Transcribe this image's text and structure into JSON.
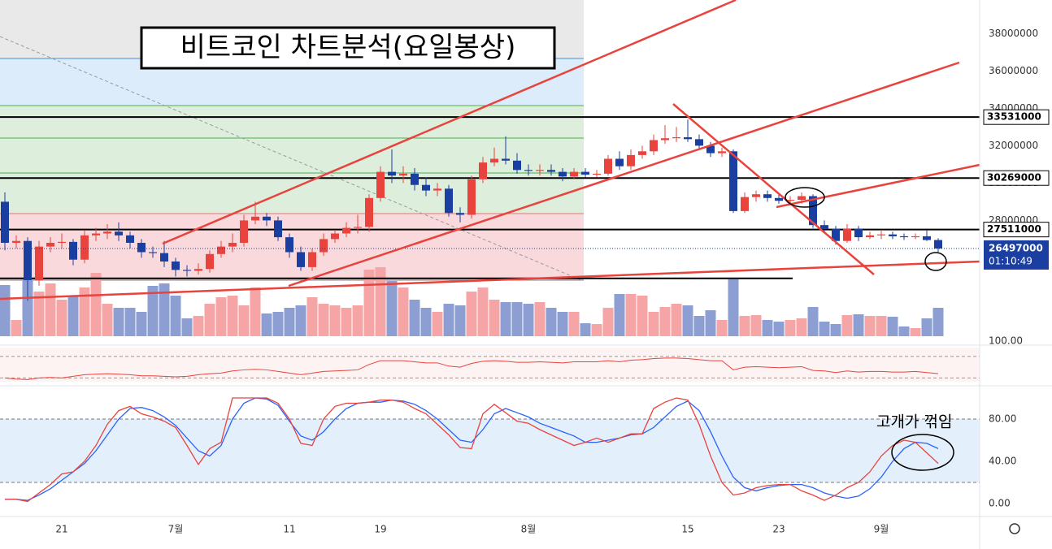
{
  "chart_data": {
    "type": "candlestick",
    "title": "비트코인 차트분석(요일봉상)",
    "annotation": "고개가 꺾임",
    "countdown": "01:10:49",
    "up_color": "#e8433d",
    "down_color": "#1b3fa0",
    "up_volume_color": "#f5a5a5",
    "down_volume_color": "#8d9fd2",
    "ylim": [
      21800000,
      39800000
    ],
    "yticks": [
      28000000,
      30000000,
      32000000,
      34000000,
      36000000,
      38000000
    ],
    "levels": [
      33531000,
      30269000,
      27511000
    ],
    "base_line": 24900000,
    "xticks": [
      {
        "value": 5,
        "label": "21"
      },
      {
        "value": 15,
        "label": "7월"
      },
      {
        "value": 25,
        "label": "11"
      },
      {
        "value": 33,
        "label": "19"
      },
      {
        "value": 46,
        "label": "8월"
      },
      {
        "value": 60,
        "label": "15"
      },
      {
        "value": 68,
        "label": "23"
      },
      {
        "value": 77,
        "label": "9월"
      }
    ],
    "ohlc": [
      [
        29000000,
        29500000,
        26400000,
        26800000
      ],
      [
        26800000,
        27200000,
        26500000,
        26900000
      ],
      [
        26900000,
        27100000,
        23700000,
        24800000
      ],
      [
        24800000,
        26900000,
        24500000,
        26600000
      ],
      [
        26600000,
        27100000,
        26300000,
        26800000
      ],
      [
        26800000,
        27300000,
        26500000,
        26850000
      ],
      [
        26850000,
        27000000,
        25600000,
        25900000
      ],
      [
        25900000,
        27500000,
        25700000,
        27200000
      ],
      [
        27200000,
        27600000,
        26900000,
        27300000
      ],
      [
        27300000,
        27800000,
        27000000,
        27400000
      ],
      [
        27400000,
        27900000,
        26900000,
        27200000
      ],
      [
        27200000,
        27400000,
        26500000,
        26800000
      ],
      [
        26800000,
        27000000,
        26000000,
        26300000
      ],
      [
        26300000,
        26600000,
        26000000,
        26250000
      ],
      [
        26250000,
        26900000,
        25500000,
        25800000
      ],
      [
        25800000,
        26000000,
        25000000,
        25350000
      ],
      [
        25350000,
        25600000,
        25000000,
        25300000
      ],
      [
        25300000,
        25700000,
        25100000,
        25400000
      ],
      [
        25400000,
        26400000,
        25200000,
        26200000
      ],
      [
        26200000,
        26900000,
        26000000,
        26600000
      ],
      [
        26600000,
        27300000,
        26300000,
        26800000
      ],
      [
        26800000,
        28300000,
        26600000,
        28000000
      ],
      [
        28000000,
        29000000,
        27800000,
        28200000
      ],
      [
        28200000,
        28400000,
        27700000,
        28000000
      ],
      [
        28000000,
        28200000,
        26900000,
        27100000
      ],
      [
        27100000,
        27300000,
        26000000,
        26300000
      ],
      [
        26300000,
        26600000,
        25300000,
        25500000
      ],
      [
        25500000,
        26500000,
        25300000,
        26300000
      ],
      [
        26300000,
        27300000,
        26100000,
        27000000
      ],
      [
        27000000,
        27500000,
        26800000,
        27300000
      ],
      [
        27300000,
        27900000,
        27100000,
        27600000
      ],
      [
        27600000,
        28300000,
        27300000,
        27650000
      ],
      [
        27650000,
        29400000,
        27400000,
        29200000
      ],
      [
        29200000,
        30900000,
        29000000,
        30600000
      ],
      [
        30600000,
        31800000,
        30000000,
        30400000
      ],
      [
        30400000,
        30900000,
        30000000,
        30500000
      ],
      [
        30500000,
        30800000,
        29600000,
        29900000
      ],
      [
        29900000,
        30300000,
        29300000,
        29600000
      ],
      [
        29600000,
        30000000,
        29300000,
        29700000
      ],
      [
        29700000,
        29900000,
        28200000,
        28400000
      ],
      [
        28400000,
        28700000,
        27900000,
        28300000
      ],
      [
        28300000,
        30400000,
        28100000,
        30200000
      ],
      [
        30200000,
        31400000,
        30000000,
        31100000
      ],
      [
        31100000,
        31900000,
        30900000,
        31300000
      ],
      [
        31300000,
        32500000,
        31000000,
        31200000
      ],
      [
        31200000,
        31600000,
        30500000,
        30700000
      ],
      [
        30700000,
        31000000,
        30400000,
        30650000
      ],
      [
        30650000,
        31000000,
        30400000,
        30700000
      ],
      [
        30700000,
        31000000,
        30400000,
        30600000
      ],
      [
        30600000,
        30800000,
        30100000,
        30350000
      ],
      [
        30350000,
        30800000,
        30200000,
        30600000
      ],
      [
        30600000,
        30800000,
        30300000,
        30450000
      ],
      [
        30450000,
        30700000,
        30300000,
        30500000
      ],
      [
        30500000,
        31500000,
        30400000,
        31300000
      ],
      [
        31300000,
        31700000,
        30700000,
        30900000
      ],
      [
        30900000,
        31800000,
        30700000,
        31500000
      ],
      [
        31500000,
        32000000,
        31300000,
        31700000
      ],
      [
        31700000,
        32600000,
        31500000,
        32300000
      ],
      [
        32300000,
        33100000,
        32100000,
        32400000
      ],
      [
        32400000,
        33000000,
        32200000,
        32450000
      ],
      [
        32450000,
        33400000,
        32200000,
        32350000
      ],
      [
        32350000,
        32600000,
        31800000,
        32000000
      ],
      [
        32000000,
        32200000,
        31400000,
        31600000
      ],
      [
        31600000,
        31900000,
        31400000,
        31700000
      ],
      [
        31700000,
        31800000,
        28400000,
        28500000
      ],
      [
        28500000,
        29500000,
        28400000,
        29250000
      ],
      [
        29250000,
        29600000,
        29000000,
        29400000
      ],
      [
        29400000,
        29600000,
        29000000,
        29200000
      ],
      [
        29200000,
        29400000,
        28900000,
        29050000
      ],
      [
        29050000,
        29300000,
        28900000,
        29100000
      ],
      [
        29100000,
        29500000,
        28900000,
        29300000
      ],
      [
        29300000,
        29400000,
        27600000,
        27750000
      ],
      [
        27750000,
        28000000,
        27400000,
        27550000
      ],
      [
        27550000,
        27700000,
        26700000,
        26900000
      ],
      [
        26900000,
        27800000,
        26800000,
        27550000
      ],
      [
        27550000,
        27700000,
        26900000,
        27100000
      ],
      [
        27100000,
        27400000,
        27000000,
        27200000
      ],
      [
        27200000,
        27500000,
        27000000,
        27250000
      ],
      [
        27250000,
        27400000,
        27000000,
        27150000
      ],
      [
        27150000,
        27300000,
        26950000,
        27100000
      ],
      [
        27100000,
        27300000,
        27000000,
        27150000
      ],
      [
        27150000,
        27500000,
        26900000,
        26950000
      ],
      [
        26950000,
        27050000,
        26300000,
        26497000
      ]
    ],
    "volume": [
      63,
      20,
      70,
      55,
      65,
      45,
      50,
      60,
      78,
      40,
      35,
      35,
      30,
      62,
      65,
      50,
      22,
      25,
      40,
      48,
      50,
      38,
      60,
      28,
      30,
      35,
      38,
      48,
      40,
      38,
      35,
      38,
      82,
      85,
      68,
      60,
      45,
      35,
      30,
      40,
      38,
      55,
      60,
      45,
      42,
      42,
      40,
      42,
      35,
      30,
      30,
      16,
      15,
      35,
      52,
      52,
      50,
      30,
      36,
      40,
      38,
      25,
      32,
      20,
      70,
      25,
      26,
      20,
      18,
      20,
      22,
      36,
      18,
      15,
      26,
      27,
      25,
      25,
      24,
      12,
      10,
      22,
      35
    ],
    "rsi": {
      "color": "#e8433d",
      "ylim": [
        20,
        100
      ],
      "yticks": [
        {
          "value": 100,
          "label": "100.00"
        }
      ],
      "bands": [
        70,
        30
      ],
      "values": [
        30,
        28,
        27,
        30,
        31,
        30,
        33,
        36,
        37,
        38,
        37,
        36,
        34,
        34,
        33,
        32,
        33,
        36,
        38,
        39,
        43,
        45,
        46,
        45,
        42,
        39,
        36,
        39,
        42,
        43,
        44,
        45,
        55,
        62,
        62,
        62,
        60,
        58,
        58,
        52,
        50,
        57,
        61,
        62,
        61,
        59,
        59,
        60,
        59,
        58,
        60,
        60,
        60,
        62,
        60,
        63,
        64,
        66,
        67,
        67,
        66,
        64,
        62,
        62,
        45,
        50,
        51,
        50,
        49,
        50,
        51,
        44,
        43,
        40,
        43,
        41,
        42,
        42,
        41,
        41,
        42,
        40,
        38
      ]
    },
    "stoch": {
      "ylim": [
        0,
        100
      ],
      "yticks": [
        {
          "value": 80,
          "label": "80.00"
        },
        {
          "value": 40,
          "label": "40.00"
        },
        {
          "value": 0,
          "label": "0.00"
        }
      ],
      "bands": [
        80,
        20
      ],
      "k": {
        "color": "#2962ff",
        "values": [
          4,
          4,
          3,
          8,
          14,
          22,
          30,
          38,
          50,
          65,
          80,
          90,
          91,
          88,
          82,
          74,
          62,
          50,
          45,
          55,
          80,
          95,
          100,
          99,
          93,
          78,
          64,
          60,
          68,
          80,
          90,
          95,
          96,
          96,
          98,
          97,
          94,
          88,
          80,
          70,
          60,
          58,
          70,
          85,
          90,
          86,
          82,
          76,
          72,
          68,
          64,
          58,
          58,
          60,
          62,
          65,
          66,
          72,
          82,
          92,
          97,
          88,
          68,
          45,
          25,
          15,
          12,
          15,
          17,
          18,
          18,
          15,
          10,
          7,
          5,
          7,
          14,
          25,
          40,
          52,
          58,
          57,
          52
        ]
      },
      "d": {
        "color": "#e8433d",
        "values": [
          4,
          4,
          2,
          10,
          18,
          28,
          30,
          40,
          55,
          75,
          88,
          92,
          85,
          82,
          78,
          72,
          55,
          37,
          52,
          58,
          100,
          100,
          100,
          100,
          95,
          80,
          57,
          55,
          80,
          92,
          95,
          95,
          96,
          98,
          98,
          96,
          90,
          85,
          75,
          65,
          53,
          52,
          85,
          94,
          86,
          78,
          76,
          70,
          65,
          60,
          55,
          58,
          62,
          58,
          62,
          66,
          66,
          90,
          96,
          100,
          98,
          75,
          45,
          20,
          8,
          10,
          15,
          17,
          18,
          18,
          12,
          8,
          3,
          8,
          15,
          20,
          30,
          45,
          55,
          60,
          58,
          48,
          38
        ]
      }
    }
  }
}
